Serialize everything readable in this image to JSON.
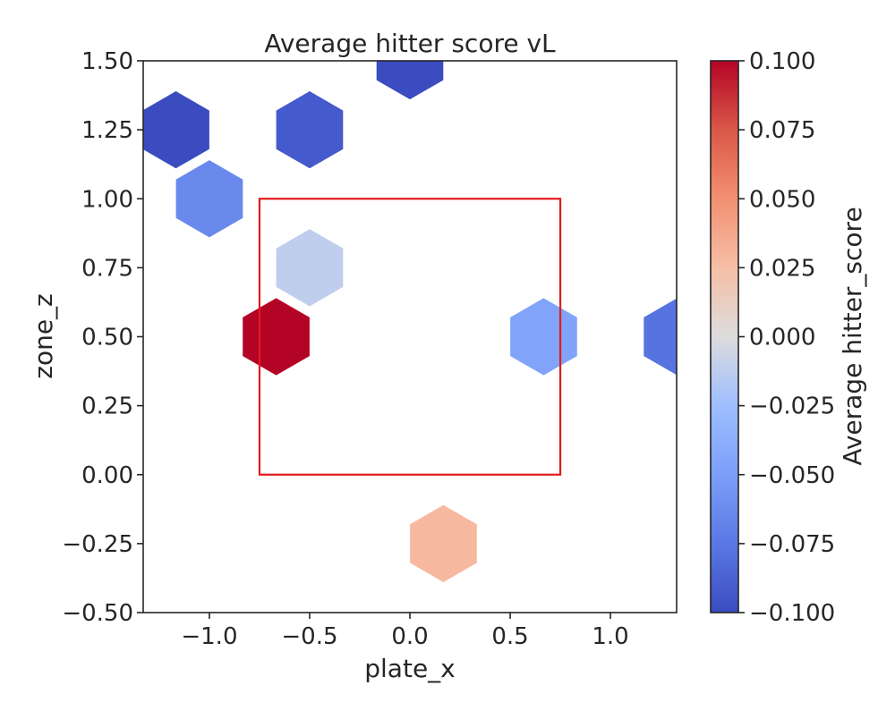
{
  "chart_data": {
    "type": "heatmap",
    "subtype": "hexbin",
    "title": "Average hitter score vL",
    "xlabel": "plate_x",
    "ylabel": "zone_z",
    "xlim": [
      -1.33,
      1.33
    ],
    "ylim": [
      -0.5,
      1.5
    ],
    "x_ticks": [
      -1.0,
      -0.5,
      0.0,
      0.5,
      1.0
    ],
    "x_tick_labels": [
      "−1.0",
      "−0.5",
      "0.0",
      "0.5",
      "1.0"
    ],
    "y_ticks": [
      -0.5,
      -0.25,
      0.0,
      0.25,
      0.5,
      0.75,
      1.0,
      1.25,
      1.5
    ],
    "y_tick_labels": [
      "−0.50",
      "−0.25",
      "0.00",
      "0.25",
      "0.50",
      "0.75",
      "1.00",
      "1.25",
      "1.50"
    ],
    "grid": false,
    "hexbins": [
      {
        "x": -1.167,
        "y": 1.25,
        "value": -0.1
      },
      {
        "x": -0.5,
        "y": 1.25,
        "value": -0.092
      },
      {
        "x": 0.0,
        "y": 1.5,
        "value": -0.1
      },
      {
        "x": -1.0,
        "y": 1.0,
        "value": -0.064
      },
      {
        "x": -0.5,
        "y": 0.75,
        "value": -0.012
      },
      {
        "x": -0.667,
        "y": 0.5,
        "value": 0.1
      },
      {
        "x": 0.667,
        "y": 0.5,
        "value": -0.046
      },
      {
        "x": 1.333,
        "y": 0.5,
        "value": -0.078
      },
      {
        "x": 0.167,
        "y": -0.25,
        "value": 0.028
      }
    ],
    "strike_zone": {
      "x": [
        -0.75,
        0.75
      ],
      "y": [
        0.0,
        1.0
      ],
      "color": "#e41a1c"
    },
    "colorbar": {
      "label": "Average hitter_score",
      "colormap": "coolwarm",
      "range": [
        -0.1,
        0.1
      ],
      "ticks": [
        -0.1,
        -0.075,
        -0.05,
        -0.025,
        0.0,
        0.025,
        0.05,
        0.075,
        0.1
      ],
      "tick_labels": [
        "−0.100",
        "−0.075",
        "−0.050",
        "−0.025",
        "0.000",
        "0.025",
        "0.050",
        "0.075",
        "0.100"
      ]
    }
  }
}
